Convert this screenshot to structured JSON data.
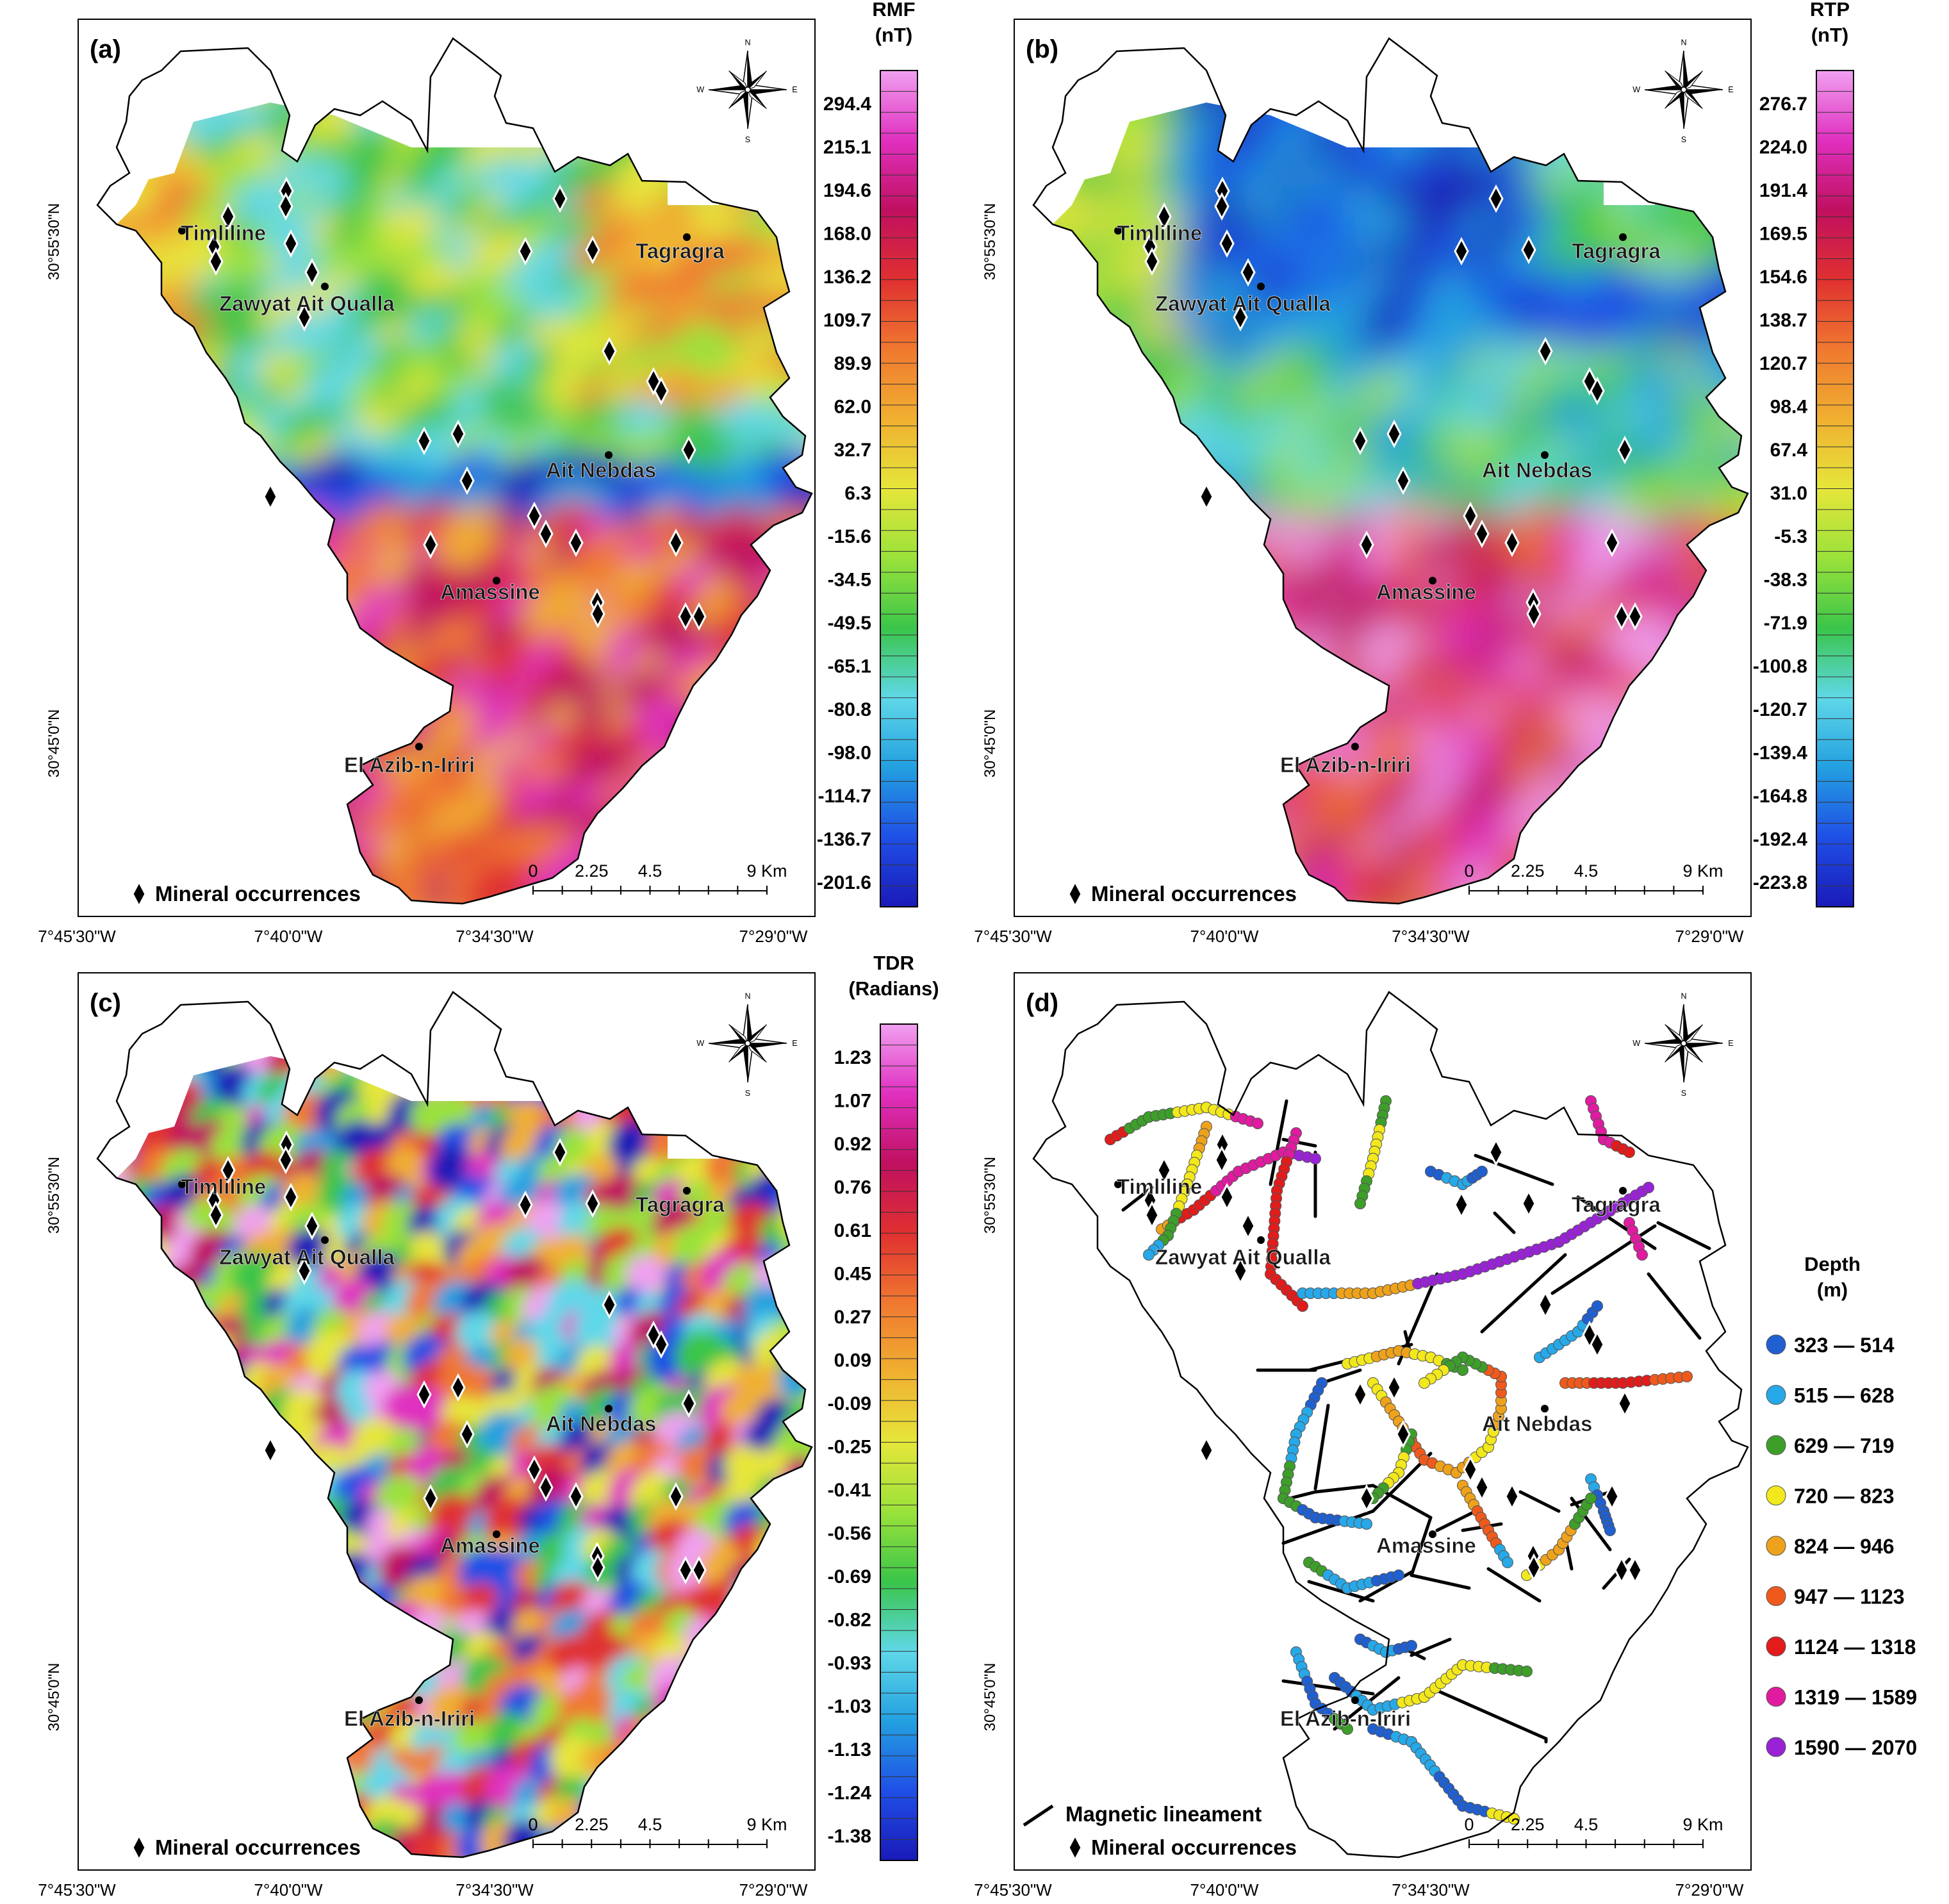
{
  "panels": [
    {
      "id": "a",
      "label": "(a)",
      "scale_title": [
        "RMF",
        "(nT)"
      ],
      "ticks": [
        "294.4",
        "215.1",
        "194.6",
        "168.0",
        "136.2",
        "109.7",
        "89.9",
        "62.0",
        "32.7",
        "6.3",
        "-15.6",
        "-34.5",
        "-49.5",
        "-65.1",
        "-80.8",
        "-98.0",
        "-114.7",
        "-136.7",
        "-201.6"
      ]
    },
    {
      "id": "b",
      "label": "(b)",
      "scale_title": [
        "RTP",
        "(nT)"
      ],
      "ticks": [
        "276.7",
        "224.0",
        "191.4",
        "169.5",
        "154.6",
        "138.7",
        "120.7",
        "98.4",
        "67.4",
        "31.0",
        "-5.3",
        "-38.3",
        "-71.9",
        "-100.8",
        "-120.7",
        "-139.4",
        "-164.8",
        "-192.4",
        "-223.8"
      ]
    },
    {
      "id": "c",
      "label": "(c)",
      "scale_title": [
        "TDR",
        "(Radians)"
      ],
      "ticks": [
        "1.23",
        "1.07",
        "0.92",
        "0.76",
        "0.61",
        "0.45",
        "0.27",
        "0.09",
        "-0.09",
        "-0.25",
        "-0.41",
        "-0.56",
        "-0.69",
        "-0.82",
        "-0.93",
        "-1.03",
        "-1.13",
        "-1.24",
        "-1.38"
      ]
    },
    {
      "id": "d",
      "label": "(d)",
      "scale_title": [
        "Depth",
        "(m)"
      ],
      "depth_classes": [
        {
          "range": "323 — 514",
          "color": "#1f5fd0"
        },
        {
          "range": "515 — 628",
          "color": "#27a8e8"
        },
        {
          "range": "629 — 719",
          "color": "#3d9e2a"
        },
        {
          "range": "720 — 823",
          "color": "#f2e81c"
        },
        {
          "range": "824 — 946",
          "color": "#eea21b"
        },
        {
          "range": "947 — 1123",
          "color": "#ef5a1c"
        },
        {
          "range": "1124 — 1318",
          "color": "#e21b1b"
        },
        {
          "range": "1319 — 1589",
          "color": "#e01ba0"
        },
        {
          "range": "1590 — 2070",
          "color": "#9a22d6"
        }
      ]
    }
  ],
  "places": [
    "Timliline",
    "Zawyat Ait Qualla",
    "Tagragra",
    "Ait Nebdas",
    "Amassine",
    "El Azib-n-Iriri"
  ],
  "lat_labels": [
    "30°55'30\"N",
    "30°45'0\"N"
  ],
  "lon_labels": [
    "7°45'30\"W",
    "7°40'0\"W",
    "7°34'30\"W",
    "7°29'0\"W"
  ],
  "scale_bar": [
    "0",
    "2.25",
    "4.5",
    "9 Km"
  ],
  "legend": {
    "mineral": "Mineral occurrences",
    "lineament": "Magnetic lineament"
  },
  "compass": [
    "N",
    "S",
    "E",
    "W"
  ],
  "colors": {
    "rmf": [
      "#1a1ab8",
      "#1f4fe6",
      "#23a0e0",
      "#5fd8e8",
      "#3ac54a",
      "#9ae23a",
      "#e6e63a",
      "#f0b030",
      "#f07830",
      "#e03030",
      "#c01060",
      "#e030c0",
      "#f0a0f0"
    ],
    "rtp": [
      "#1a1ab8",
      "#1f4fe6",
      "#23a0e0",
      "#5fd8e8",
      "#3ac54a",
      "#9ae23a",
      "#e6e63a",
      "#f0b030",
      "#f07830",
      "#e03030",
      "#c01060",
      "#e030c0",
      "#f0a0f0"
    ],
    "tdr": [
      "#1a1ab8",
      "#1f4fe6",
      "#23a0e0",
      "#5fd8e8",
      "#3ac54a",
      "#9ae23a",
      "#e6e63a",
      "#f0b030",
      "#f07830",
      "#e03030",
      "#c01060",
      "#e030c0",
      "#f0a0f0"
    ]
  }
}
